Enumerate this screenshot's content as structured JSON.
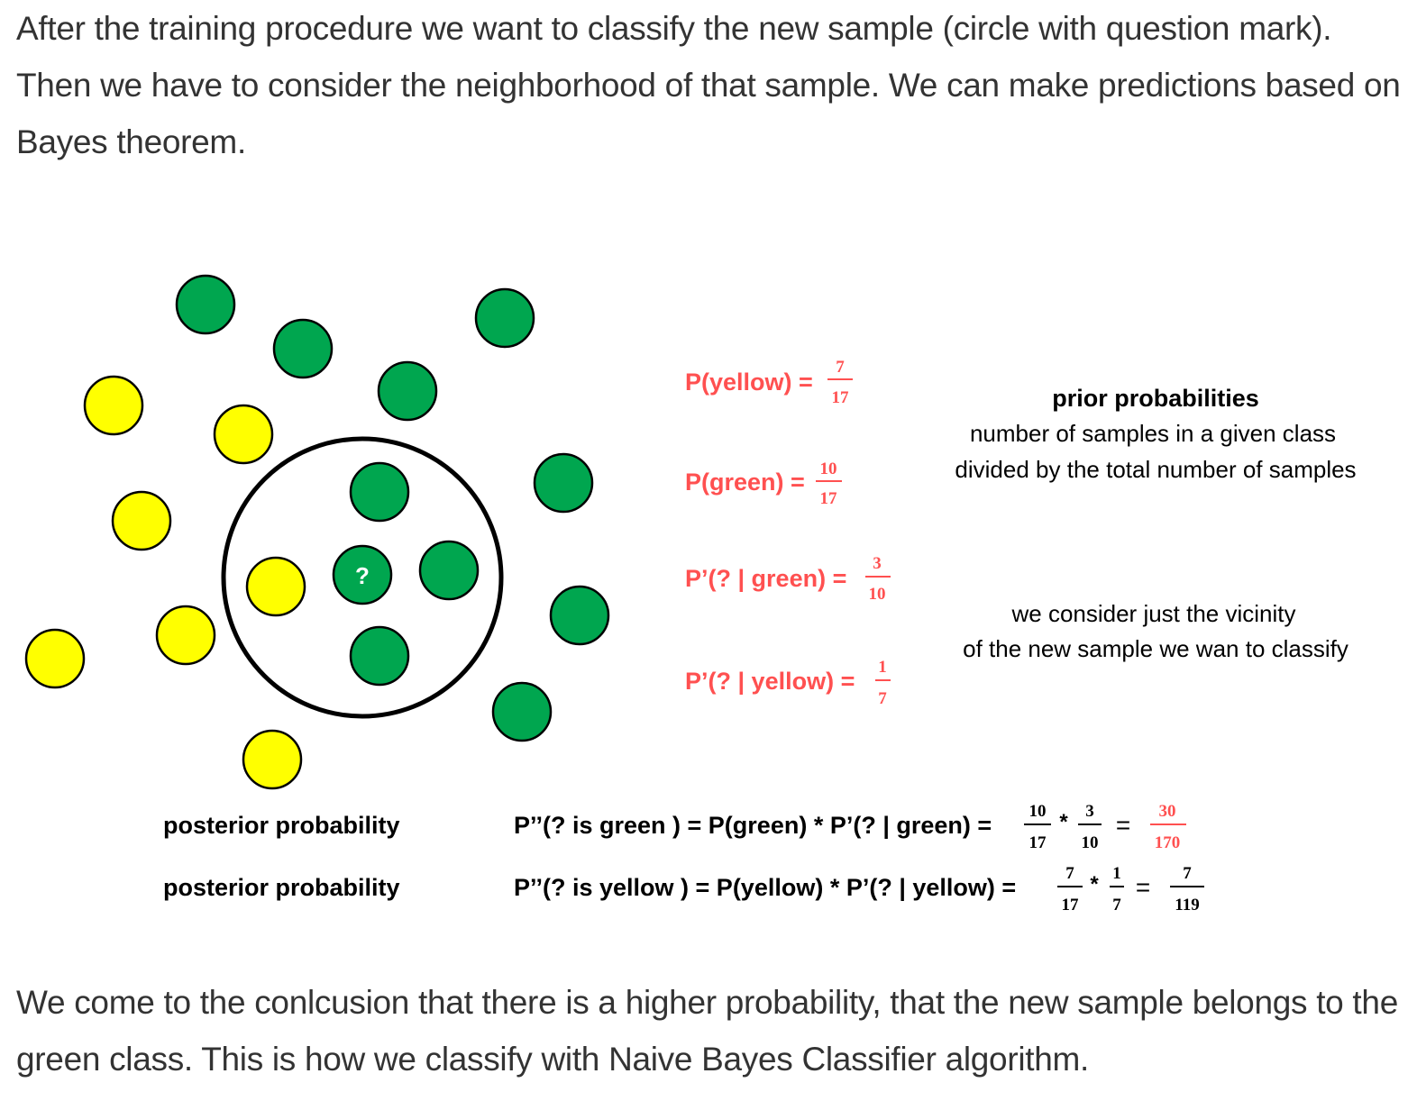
{
  "article": {
    "intro": "After the training procedure we want to classify the new sample (circle with question mark). Then we have to consider the neighborhood of that sample. We can make predictions based on Bayes theorem.",
    "conclusion": "We come to the conlcusion that there is a higher probability, that the new sample belongs to the green class. This is how we classify with Naive Bayes Classifier algorithm."
  },
  "colors": {
    "green": "#00a64f",
    "yellow": "#ffff00",
    "red": "#ff5050",
    "text": "#333333"
  },
  "figure": {
    "new_sample_mark": "?",
    "samples": {
      "green_total": 10,
      "yellow_total": 7,
      "green_in_vicinity": 3,
      "yellow_in_vicinity": 1
    },
    "priors": {
      "yellow": {
        "label": "P(yellow) =",
        "num": "7",
        "den": "17"
      },
      "green": {
        "label": "P(green) =",
        "num": "10",
        "den": "17"
      }
    },
    "likelihoods": {
      "green": {
        "label": "P’(? | green) =",
        "num": "3",
        "den": "10"
      },
      "yellow": {
        "label": "P’(? | yellow) =",
        "num": "1",
        "den": "7"
      }
    },
    "prior_note": {
      "title": "prior probabilities",
      "line1": "number of samples in a given class",
      "line2": "divided by the total number of samples"
    },
    "vicinity_note": {
      "line1": "we consider just the vicinity",
      "line2": "of the new sample we wan to classify"
    },
    "posterior": {
      "label": "posterior probability",
      "green": {
        "expr": "P’’(? is green ) = P(green) * P’(? | green) =",
        "f1": {
          "num": "10",
          "den": "17"
        },
        "f2": {
          "num": "3",
          "den": "10"
        },
        "result": {
          "num": "30",
          "den": "170"
        }
      },
      "yellow": {
        "expr": "P’’(? is yellow ) = P(yellow) * P’(? | yellow) =",
        "f1": {
          "num": "7",
          "den": "17"
        },
        "f2": {
          "num": "1",
          "den": "7"
        },
        "result": {
          "num": "7",
          "den": "119"
        }
      },
      "times": "*",
      "equals": "="
    }
  }
}
